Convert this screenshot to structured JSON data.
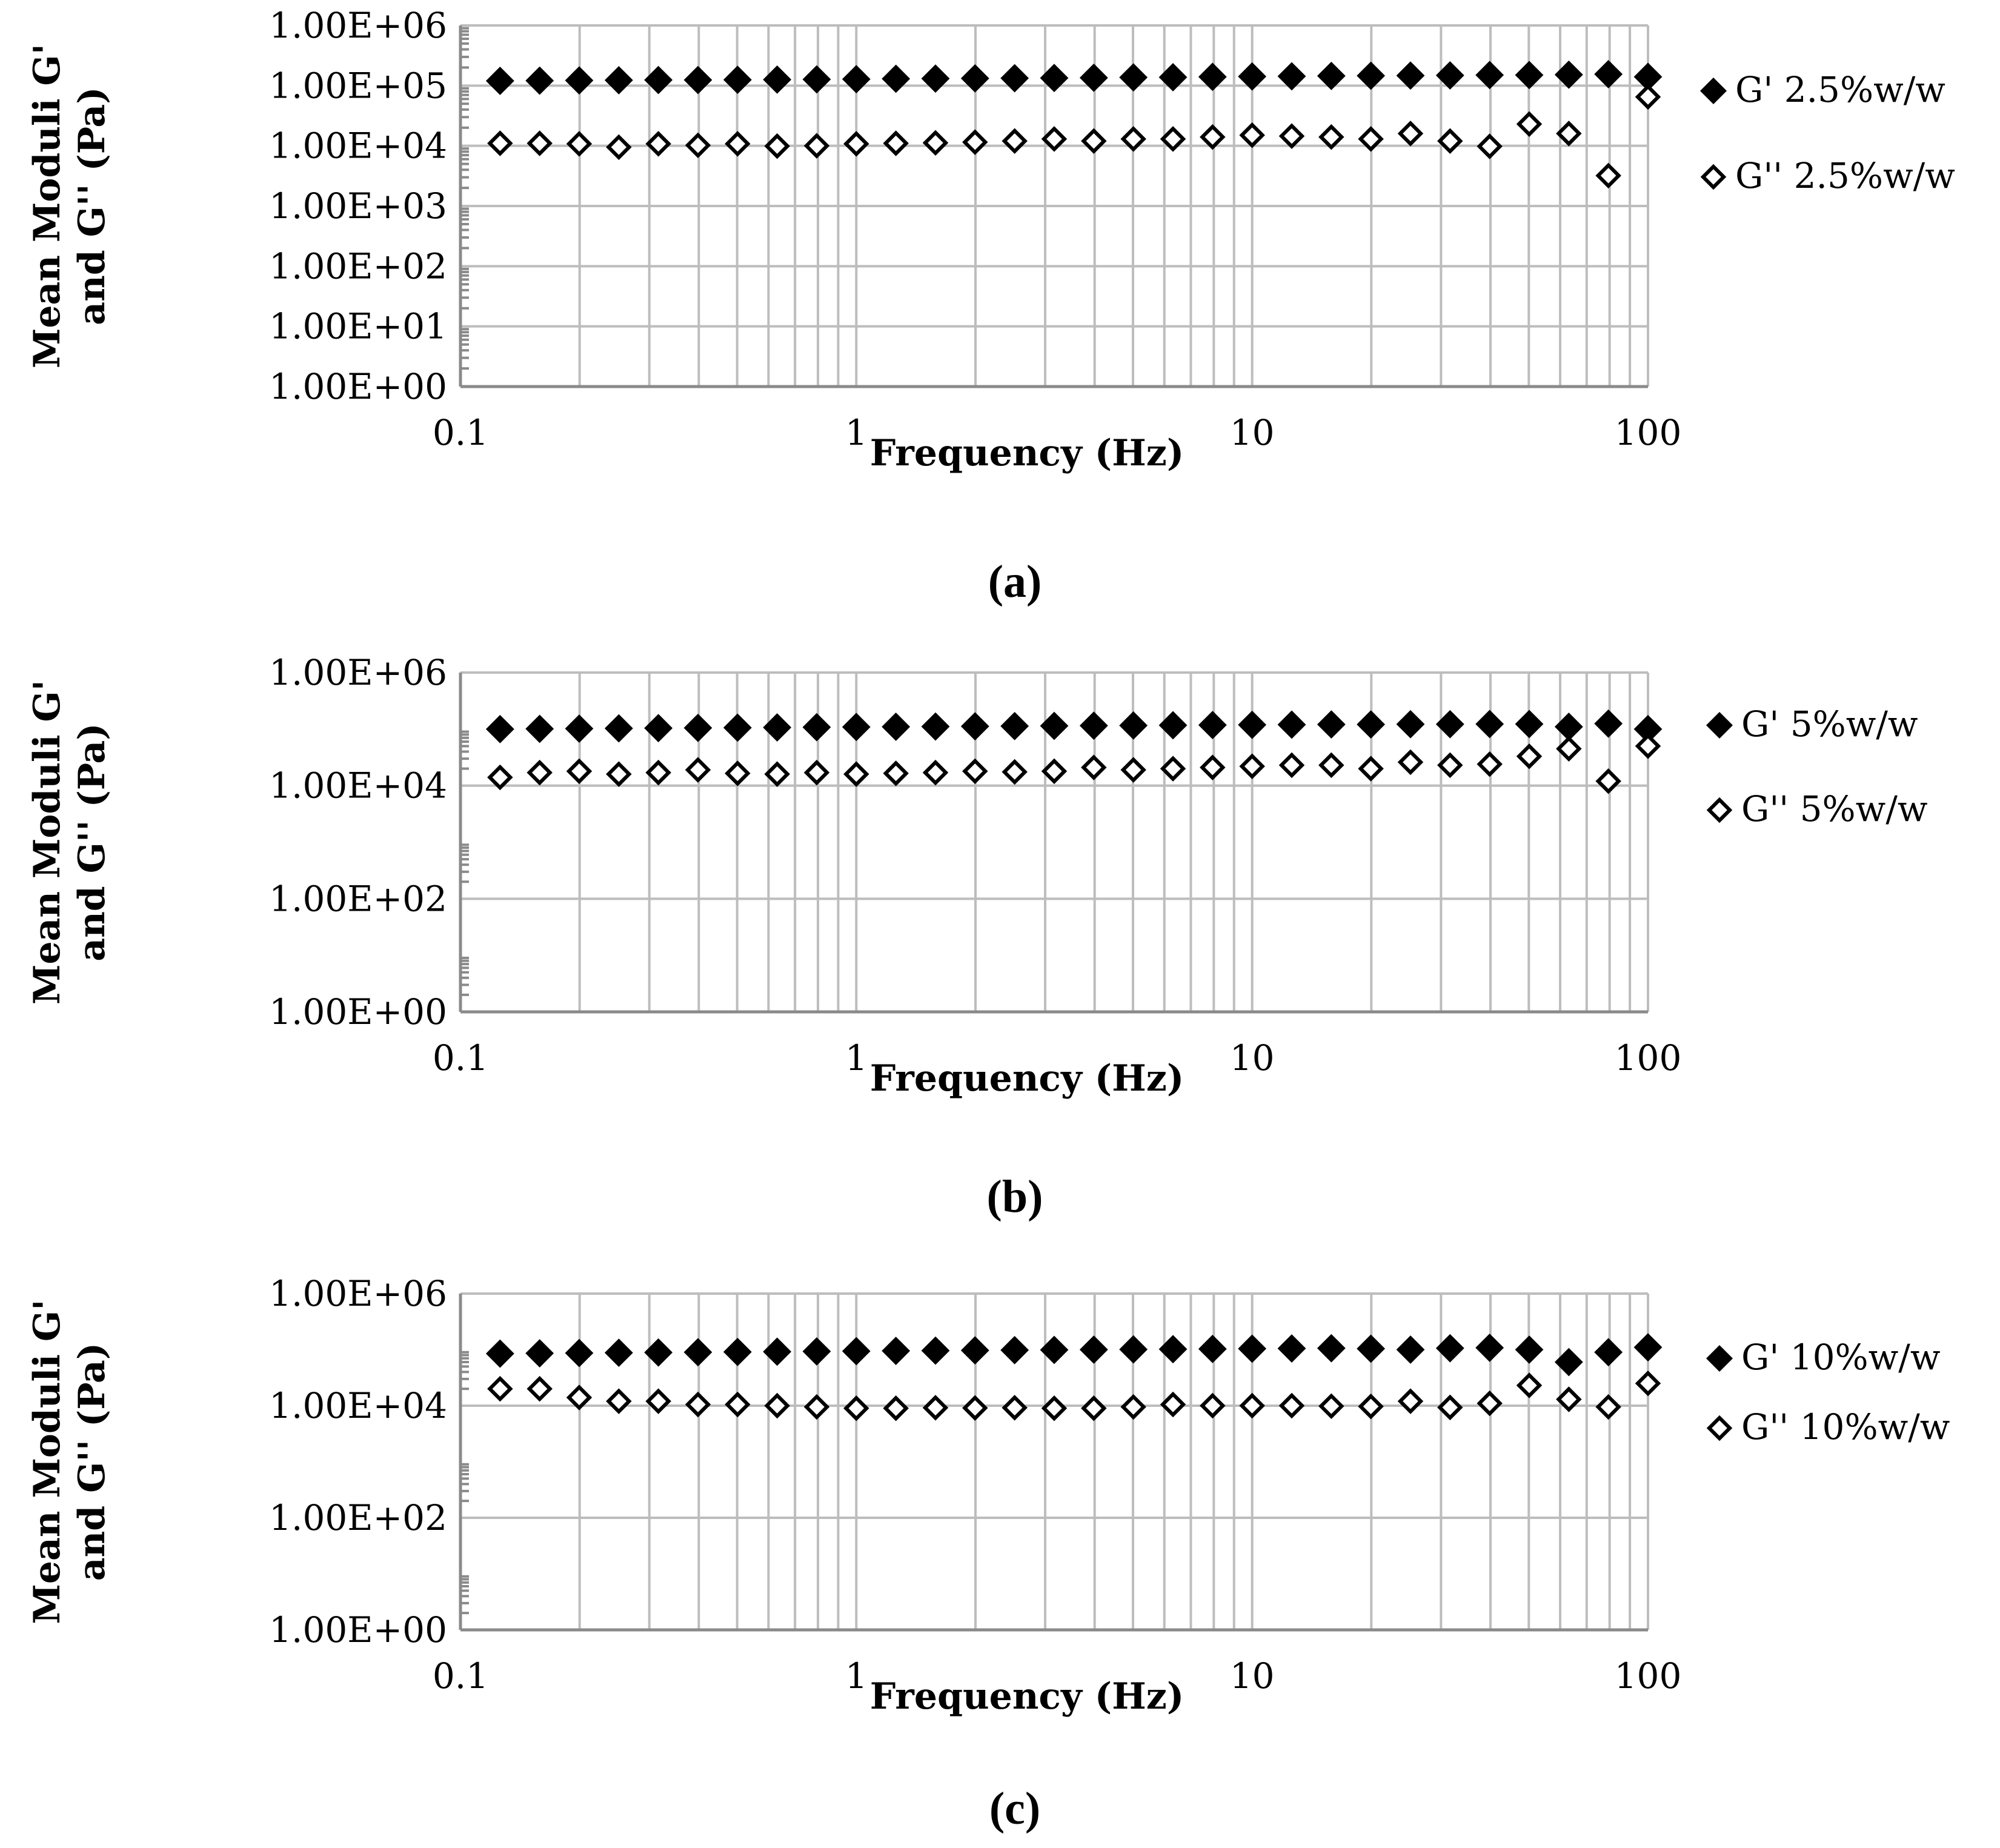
{
  "chart_data": [
    {
      "type": "scatter",
      "panel_label": "(a)",
      "xlabel": "Frequency (Hz)",
      "ylabel_line1": "Mean Moduli G'",
      "ylabel_line2": "and G'' (Pa)",
      "xscale": "log",
      "yscale": "log",
      "xlim": [
        0.1,
        100
      ],
      "ylim": [
        1,
        1000000
      ],
      "x_tick_labels": [
        "0.1",
        "1",
        "10",
        "100"
      ],
      "x_tick_values": [
        0.1,
        1,
        10,
        100
      ],
      "y_tick_labels": [
        "1.00E+06",
        "1.00E+05",
        "1.00E+04",
        "1.00E+03",
        "1.00E+02",
        "1.00E+01",
        "1.00E+00"
      ],
      "y_tick_values": [
        1000000,
        100000,
        10000,
        1000,
        100,
        10,
        1
      ],
      "legend_position": "right",
      "x": [
        0.1259,
        0.1585,
        0.1995,
        0.2512,
        0.3162,
        0.3981,
        0.5012,
        0.631,
        0.7943,
        1.0,
        1.259,
        1.585,
        1.995,
        2.512,
        3.162,
        3.981,
        5.012,
        6.31,
        7.943,
        10.0,
        12.59,
        15.85,
        19.95,
        25.12,
        31.62,
        39.81,
        50.12,
        63.1,
        79.43,
        100.0
      ],
      "series": [
        {
          "name": "G' 2.5%w/w",
          "marker": "filled-diamond",
          "values": [
            120000,
            121000,
            122000,
            123000,
            124000,
            124000,
            125000,
            126000,
            127000,
            128000,
            130000,
            131000,
            132000,
            133000,
            134000,
            135000,
            137000,
            138000,
            140000,
            142000,
            143000,
            145000,
            146000,
            147000,
            148000,
            150000,
            150000,
            152000,
            155000,
            140000
          ]
        },
        {
          "name": "G'' 2.5%w/w",
          "marker": "open-diamond",
          "values": [
            11000,
            11000,
            10800,
            9500,
            10800,
            10200,
            10800,
            9900,
            10000,
            10800,
            11000,
            11200,
            11500,
            12000,
            13000,
            12000,
            13000,
            13000,
            14000,
            15000,
            14500,
            14000,
            13000,
            16000,
            12000,
            9800,
            23000,
            16000,
            3200,
            65000
          ]
        }
      ]
    },
    {
      "type": "scatter",
      "panel_label": "(b)",
      "xlabel": "Frequency (Hz)",
      "ylabel_line1": "Mean Moduli G'",
      "ylabel_line2": "and G'' (Pa)",
      "xscale": "log",
      "yscale": "log",
      "xlim": [
        0.1,
        100
      ],
      "ylim": [
        1,
        1000000
      ],
      "x_tick_labels": [
        "0.1",
        "1",
        "10",
        "100"
      ],
      "x_tick_values": [
        0.1,
        1,
        10,
        100
      ],
      "y_tick_labels": [
        "1.00E+06",
        "1.00E+04",
        "1.00E+02",
        "1.00E+00"
      ],
      "y_tick_values": [
        1000000,
        10000,
        100,
        1
      ],
      "legend_position": "right",
      "x": [
        0.1259,
        0.1585,
        0.1995,
        0.2512,
        0.3162,
        0.3981,
        0.5012,
        0.631,
        0.7943,
        1.0,
        1.259,
        1.585,
        1.995,
        2.512,
        3.162,
        3.981,
        5.012,
        6.31,
        7.943,
        10.0,
        12.59,
        15.85,
        19.95,
        25.12,
        31.62,
        39.81,
        50.12,
        63.1,
        79.43,
        100.0
      ],
      "series": [
        {
          "name": "G' 5%w/w",
          "marker": "filled-diamond",
          "values": [
            100000,
            101000,
            102000,
            103000,
            104000,
            105000,
            106000,
            107000,
            108000,
            109000,
            110000,
            111000,
            112000,
            113000,
            114000,
            115000,
            116000,
            117000,
            118000,
            119000,
            120000,
            121000,
            121000,
            122000,
            122000,
            123000,
            123000,
            110000,
            125000,
            100000
          ]
        },
        {
          "name": "G'' 5%w/w",
          "marker": "open-diamond",
          "values": [
            14000,
            17000,
            18000,
            16000,
            17000,
            19000,
            16500,
            16000,
            17000,
            16000,
            16500,
            17000,
            18000,
            17500,
            18000,
            21000,
            19000,
            20000,
            21000,
            22000,
            23000,
            23000,
            20000,
            26000,
            23000,
            24000,
            33000,
            45000,
            12000,
            50000
          ]
        }
      ]
    },
    {
      "type": "scatter",
      "panel_label": "(c)",
      "xlabel": "Frequency (Hz)",
      "ylabel_line1": "Mean Moduli G'",
      "ylabel_line2": "and G'' (Pa)",
      "xscale": "log",
      "yscale": "log",
      "xlim": [
        0.1,
        100
      ],
      "ylim": [
        1,
        1000000
      ],
      "x_tick_labels": [
        "0.1",
        "1",
        "10",
        "100"
      ],
      "x_tick_values": [
        0.1,
        1,
        10,
        100
      ],
      "y_tick_labels": [
        "1.00E+06",
        "1.00E+04",
        "1.00E+02",
        "1.00E+00"
      ],
      "y_tick_values": [
        1000000,
        10000,
        100,
        1
      ],
      "legend_position": "right",
      "x": [
        0.1259,
        0.1585,
        0.1995,
        0.2512,
        0.3162,
        0.3981,
        0.5012,
        0.631,
        0.7943,
        1.0,
        1.259,
        1.585,
        1.995,
        2.512,
        3.162,
        3.981,
        5.012,
        6.31,
        7.943,
        10.0,
        12.59,
        15.85,
        19.95,
        25.12,
        31.62,
        39.81,
        50.12,
        63.1,
        79.43,
        100.0
      ],
      "series": [
        {
          "name": "G' 10%w/w",
          "marker": "filled-diamond",
          "values": [
            85000,
            86000,
            87000,
            88000,
            89000,
            90000,
            91000,
            92000,
            93000,
            94000,
            95000,
            96000,
            97000,
            98000,
            99000,
            100000,
            101000,
            102000,
            103000,
            104000,
            105000,
            106000,
            104000,
            100000,
            106000,
            108000,
            100000,
            60000,
            90000,
            110000
          ]
        },
        {
          "name": "G'' 10%w/w",
          "marker": "open-diamond",
          "values": [
            20000,
            20000,
            14000,
            12000,
            12000,
            10500,
            10500,
            10000,
            9500,
            9000,
            9000,
            9200,
            9100,
            9200,
            9000,
            9000,
            9500,
            10500,
            10000,
            10000,
            10000,
            9800,
            9700,
            12000,
            9300,
            11000,
            23000,
            13000,
            9500,
            25000
          ]
        }
      ]
    }
  ]
}
